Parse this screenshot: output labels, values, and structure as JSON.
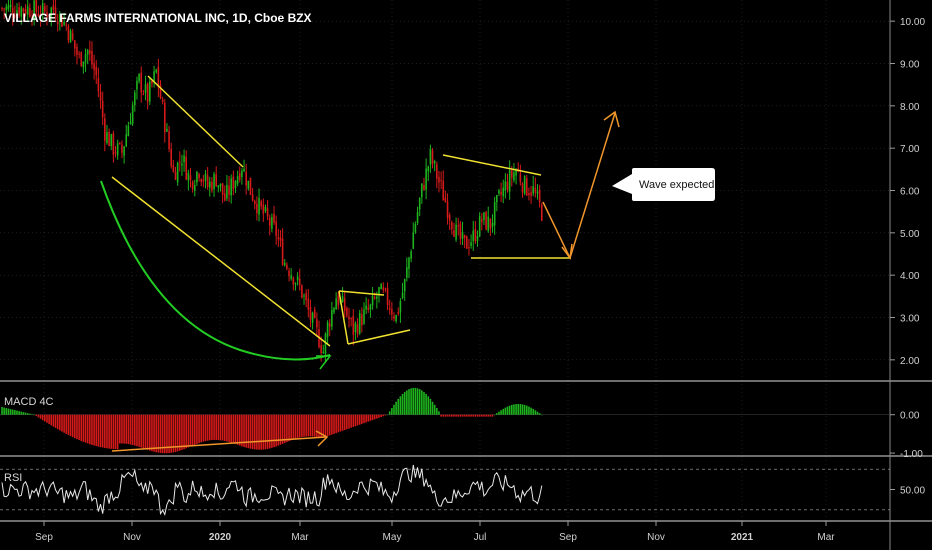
{
  "chart_data": {
    "type": "candlestick",
    "title": "VILLAGE FARMS INTERNATIONAL INC, 1D, Cboe BZX",
    "x_ticks": [
      "Sep",
      "Nov",
      "2020",
      "Mar",
      "May",
      "Jul",
      "Sep",
      "Nov",
      "2021",
      "Mar"
    ],
    "price_axis": {
      "ticks": [
        "10.00",
        "9.00",
        "8.00",
        "7.00",
        "6.00",
        "5.00",
        "4.00",
        "3.00",
        "2.00"
      ],
      "range": [
        1.5,
        10.5
      ]
    },
    "price_series": [
      {
        "x": 0,
        "close": 10.3
      },
      {
        "x": 12,
        "close": 10.3
      },
      {
        "x": 20,
        "close": 10.2
      },
      {
        "x": 24,
        "close": 10.3
      },
      {
        "x": 30,
        "close": 9.9
      },
      {
        "x": 36,
        "close": 9.1
      },
      {
        "x": 40,
        "close": 9.3
      },
      {
        "x": 44,
        "close": 8.7
      },
      {
        "x": 48,
        "close": 7.4
      },
      {
        "x": 52,
        "close": 7.0
      },
      {
        "x": 56,
        "close": 6.9
      },
      {
        "x": 60,
        "close": 7.8
      },
      {
        "x": 64,
        "close": 8.6
      },
      {
        "x": 68,
        "close": 8.2
      },
      {
        "x": 72,
        "close": 8.8
      },
      {
        "x": 76,
        "close": 7.6
      },
      {
        "x": 80,
        "close": 6.4
      },
      {
        "x": 84,
        "close": 6.8
      },
      {
        "x": 88,
        "close": 6.2
      },
      {
        "x": 92,
        "close": 6.5
      },
      {
        "x": 96,
        "close": 6.1
      },
      {
        "x": 100,
        "close": 6.3
      },
      {
        "x": 104,
        "close": 5.8
      },
      {
        "x": 108,
        "close": 6.2
      },
      {
        "x": 112,
        "close": 6.6
      },
      {
        "x": 116,
        "close": 6.0
      },
      {
        "x": 120,
        "close": 5.6
      },
      {
        "x": 124,
        "close": 5.3
      },
      {
        "x": 128,
        "close": 5.0
      },
      {
        "x": 132,
        "close": 4.3
      },
      {
        "x": 136,
        "close": 4.0
      },
      {
        "x": 140,
        "close": 3.6
      },
      {
        "x": 144,
        "close": 3.0
      },
      {
        "x": 148,
        "close": 2.5
      },
      {
        "x": 150,
        "close": 2.2
      },
      {
        "x": 152,
        "close": 2.8
      },
      {
        "x": 156,
        "close": 3.5
      },
      {
        "x": 160,
        "close": 3.2
      },
      {
        "x": 164,
        "close": 2.7
      },
      {
        "x": 168,
        "close": 3.0
      },
      {
        "x": 172,
        "close": 3.2
      },
      {
        "x": 176,
        "close": 3.6
      },
      {
        "x": 180,
        "close": 3.4
      },
      {
        "x": 184,
        "close": 3.0
      },
      {
        "x": 188,
        "close": 3.8
      },
      {
        "x": 192,
        "close": 5.0
      },
      {
        "x": 196,
        "close": 6.0
      },
      {
        "x": 200,
        "close": 6.8
      },
      {
        "x": 204,
        "close": 6.2
      },
      {
        "x": 208,
        "close": 5.6
      },
      {
        "x": 212,
        "close": 5.0
      },
      {
        "x": 216,
        "close": 4.7
      },
      {
        "x": 220,
        "close": 4.9
      },
      {
        "x": 224,
        "close": 5.3
      },
      {
        "x": 228,
        "close": 5.2
      },
      {
        "x": 232,
        "close": 5.8
      },
      {
        "x": 236,
        "close": 6.2
      },
      {
        "x": 240,
        "close": 6.5
      },
      {
        "x": 244,
        "close": 6.1
      },
      {
        "x": 248,
        "close": 6.0
      },
      {
        "x": 252,
        "close": 5.5
      }
    ],
    "indicators": [
      {
        "name": "MACD 4C",
        "ticks": [
          "0.00",
          "-1.00"
        ],
        "range": [
          -1.05,
          0.8
        ]
      },
      {
        "name": "RSI",
        "ticks": [
          "50.00"
        ],
        "range": [
          20,
          80
        ],
        "bands": [
          70,
          30
        ]
      }
    ],
    "annotations": [
      {
        "type": "text-callout",
        "text": "Wave expected"
      }
    ],
    "colors": {
      "up": "#1db41d",
      "down": "#d61a1a",
      "background": "#000000",
      "trendline_yellow": "#f0e130",
      "curve_green": "#22cc22",
      "arrow_orange": "#f0962a",
      "rsi_line": "#e8e8e8",
      "grid": "#3a3a3a",
      "panel_separator": "#dddddd"
    }
  }
}
